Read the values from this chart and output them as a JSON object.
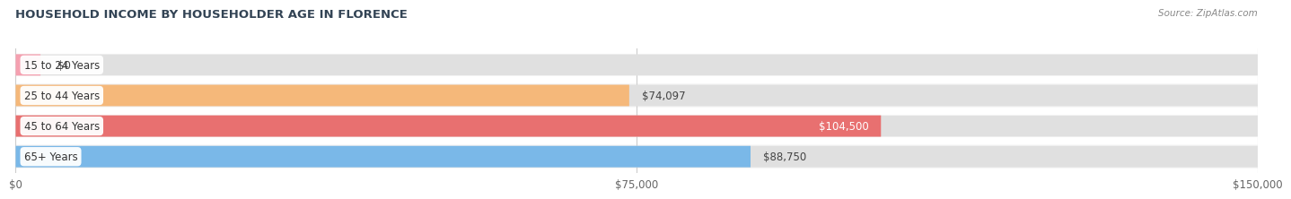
{
  "title": "HOUSEHOLD INCOME BY HOUSEHOLDER AGE IN FLORENCE",
  "source": "Source: ZipAtlas.com",
  "categories": [
    "15 to 24 Years",
    "25 to 44 Years",
    "45 to 64 Years",
    "65+ Years"
  ],
  "values": [
    0,
    74097,
    104500,
    88750
  ],
  "bar_colors": [
    "#f5a0b0",
    "#f5b87a",
    "#e87070",
    "#7ab8e8"
  ],
  "label_colors": [
    "#555555",
    "#444444",
    "#ffffff",
    "#444444"
  ],
  "value_inside": [
    false,
    false,
    true,
    false
  ],
  "xlim": [
    0,
    150000
  ],
  "xticks": [
    0,
    75000,
    150000
  ],
  "xtick_labels": [
    "$0",
    "$75,000",
    "$150,000"
  ],
  "fig_bg": "#ffffff",
  "row_bg_even": "#f5f5f5",
  "row_bg_odd": "#ebebeb",
  "bar_bg": "#e8e8e8",
  "grid_color": "#cccccc"
}
